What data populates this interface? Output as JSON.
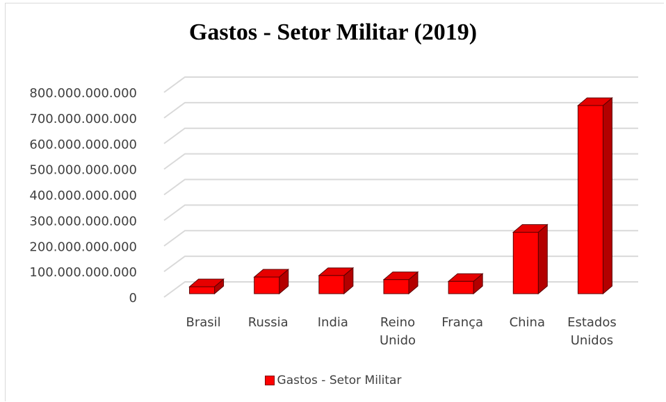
{
  "chart_data": {
    "type": "bar",
    "title": "Gastos - Setor Militar (2019)",
    "categories": [
      [
        "Brasil"
      ],
      [
        "Russia"
      ],
      [
        "India"
      ],
      [
        "Reino",
        "Unido"
      ],
      [
        "França"
      ],
      [
        "China"
      ],
      [
        "Estados",
        "Unidos"
      ]
    ],
    "series": [
      {
        "name": "Gastos - Setor Militar",
        "values": [
          27000000000,
          65000000000,
          71000000000,
          55000000000,
          48000000000,
          240000000000,
          735000000000
        ]
      }
    ],
    "yticks": [
      "0",
      "100.000.000.000",
      "200.000.000.000",
      "300.000.000.000",
      "400.000.000.000",
      "500.000.000.000",
      "600.000.000.000",
      "700.000.000.000",
      "800.000.000.000"
    ],
    "ylim": [
      0,
      800000000000
    ],
    "grid": true,
    "legend_position": "bottom",
    "colors": {
      "bar_front": "#ff0000",
      "bar_top": "#e60000",
      "bar_side": "#b30000",
      "bar_outline": "#5a0000",
      "grid": "#d9d9d9",
      "axis_text": "#404040"
    }
  }
}
